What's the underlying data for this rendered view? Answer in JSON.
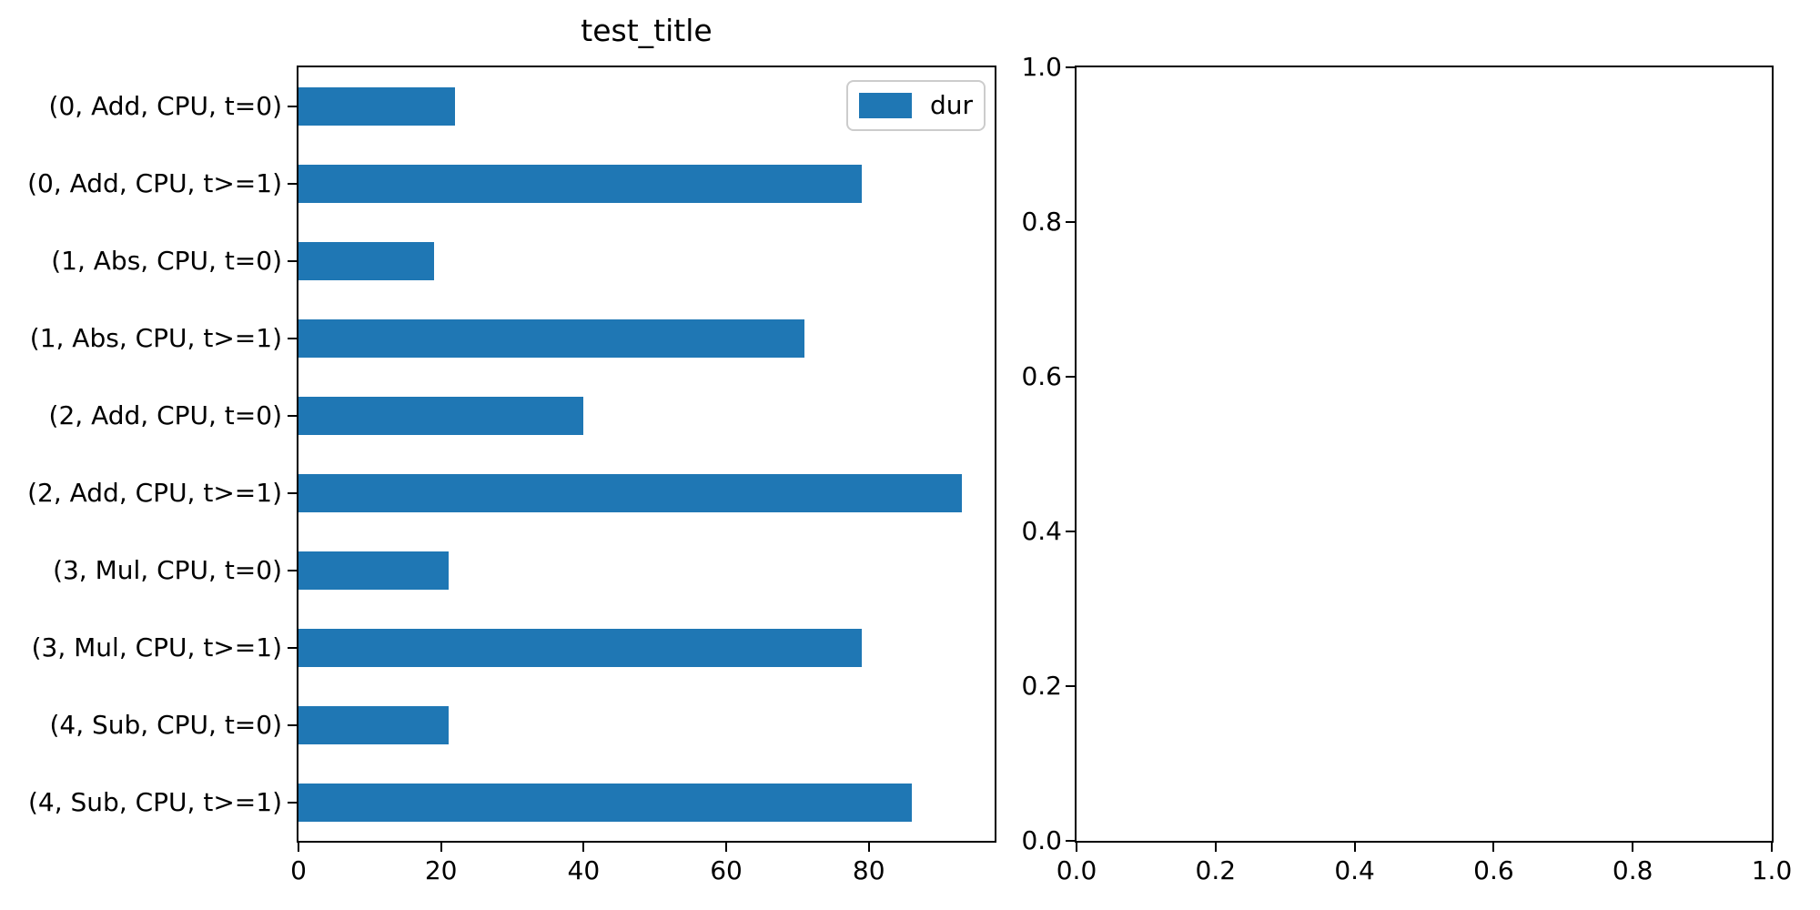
{
  "figure": {
    "background": "#ffffff",
    "axis_color": "#000000",
    "text_color": "#000000",
    "legend_border_color": "#cccccc"
  },
  "chart_data": [
    {
      "type": "bar",
      "orientation": "horizontal",
      "title": "test_title",
      "xlabel": "",
      "ylabel": "",
      "categories": [
        "(0, Add, CPU, t=0)",
        "(0, Add, CPU, t>=1)",
        "(1, Abs, CPU, t=0)",
        "(1, Abs, CPU, t>=1)",
        "(2, Add, CPU, t=0)",
        "(2, Add, CPU, t>=1)",
        "(3, Mul, CPU, t=0)",
        "(3, Mul, CPU, t>=1)",
        "(4, Sub, CPU, t=0)",
        "(4, Sub, CPU, t>=1)"
      ],
      "series": [
        {
          "name": "dur",
          "values": [
            22,
            79,
            19,
            71,
            40,
            93,
            21,
            79,
            21,
            86
          ]
        }
      ],
      "bar_color": "#1f77b4",
      "xlim": [
        0,
        97.65
      ],
      "x_ticks": [
        0,
        20,
        40,
        60,
        80
      ],
      "grid": false,
      "legend": {
        "position": "upper right",
        "entries": [
          "dur"
        ]
      }
    },
    {
      "type": "line",
      "title": "",
      "xlabel": "",
      "ylabel": "",
      "series": [],
      "xlim": [
        0,
        1
      ],
      "ylim": [
        0,
        1
      ],
      "x_ticks": [
        "0.0",
        "0.2",
        "0.4",
        "0.6",
        "0.8",
        "1.0"
      ],
      "y_ticks": [
        "0.0",
        "0.2",
        "0.4",
        "0.6",
        "0.8",
        "1.0"
      ],
      "grid": false
    }
  ]
}
